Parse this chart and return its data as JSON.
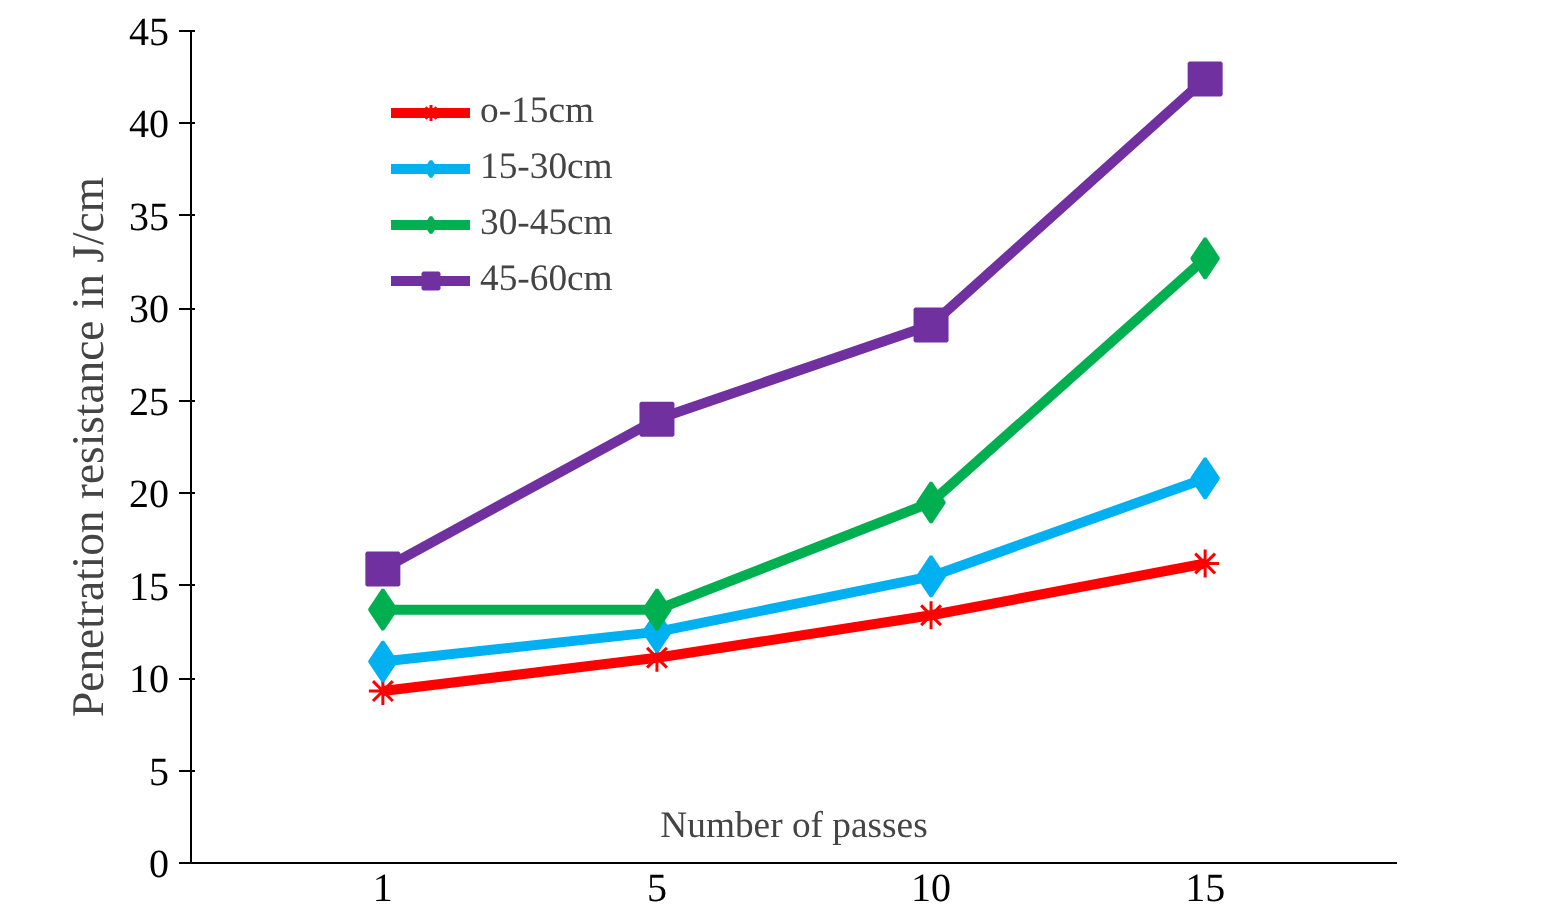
{
  "chart_data": {
    "type": "line",
    "xlabel": "Number of passes",
    "ylabel": "Penetration resistance in J/cm",
    "categories": [
      "1",
      "5",
      "10",
      "15"
    ],
    "ylim": [
      0,
      45
    ],
    "yticks": [
      0,
      5,
      10,
      15,
      20,
      25,
      30,
      35,
      40,
      45
    ],
    "grid": false,
    "legend": "top left",
    "series": [
      {
        "name": "o-15cm",
        "color": "#ff0000",
        "marker": "cross",
        "values": [
          9.3,
          11.1,
          13.4,
          16.2
        ]
      },
      {
        "name": "15-30cm",
        "color": "#00b0f0",
        "marker": "diamond",
        "values": [
          10.9,
          12.5,
          15.5,
          20.8
        ]
      },
      {
        "name": "30-45cm",
        "color": "#00b050",
        "marker": "diamond",
        "values": [
          13.7,
          13.7,
          19.5,
          32.7
        ]
      },
      {
        "name": "45-60cm",
        "color": "#7030a0",
        "marker": "square",
        "values": [
          15.9,
          24.0,
          29.1,
          42.4
        ]
      }
    ]
  }
}
